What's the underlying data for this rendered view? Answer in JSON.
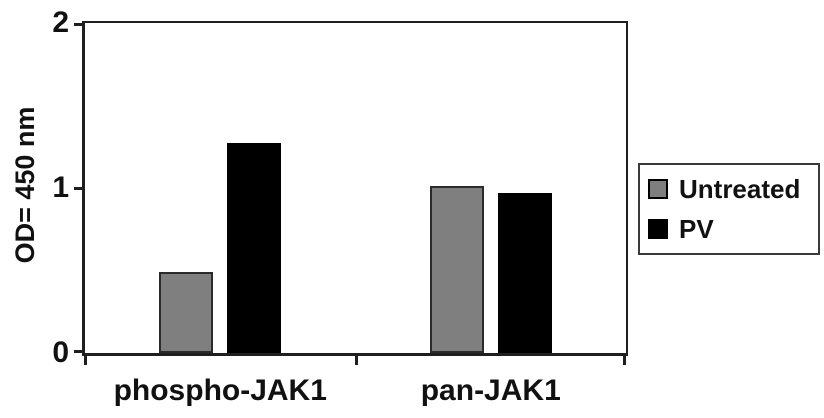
{
  "chart_data": {
    "type": "bar",
    "title": "",
    "categories": [
      "phospho-JAK1",
      "pan-JAK1"
    ],
    "series": [
      {
        "name": "Untreated",
        "color": "#7f7f7f",
        "border": "#2b2b2b",
        "values": [
          0.49,
          1.01
        ]
      },
      {
        "name": "PV",
        "color": "#000000",
        "border": "#000000",
        "values": [
          1.27,
          0.97
        ]
      }
    ],
    "xlabel": "",
    "ylabel": "OD= 450 nm",
    "ylim": [
      0,
      2
    ],
    "yticks": [
      0,
      1,
      2
    ],
    "ytick_labels": [
      "0",
      "1",
      "2"
    ],
    "grid": false,
    "legend_position": "right",
    "plot_border": true,
    "background_color": "#ffffff",
    "axis_color": "#1f1f1f"
  },
  "legend": {
    "items": [
      {
        "label": "Untreated",
        "swatch_color": "#7f7f7f"
      },
      {
        "label": "PV",
        "swatch_color": "#000000"
      }
    ]
  }
}
